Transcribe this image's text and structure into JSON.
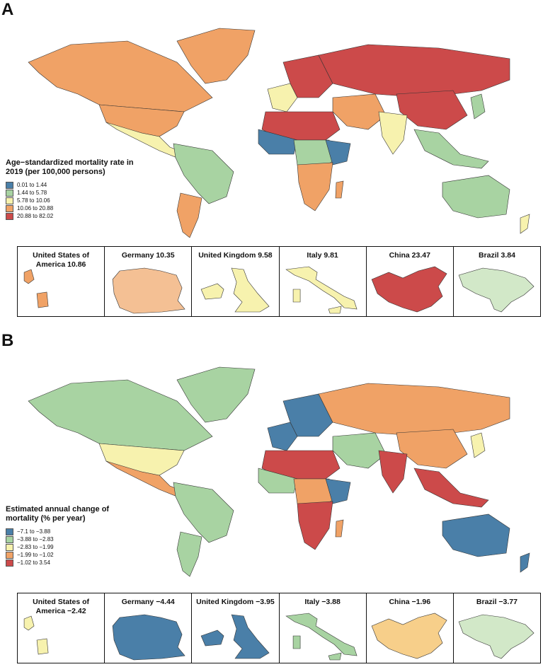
{
  "panelA": {
    "label": "A",
    "legend": {
      "title": "Age−standardized mortality rate in 2019 (per 100,000 persons)",
      "items": [
        {
          "label": "0.01 to 1.44",
          "color": "#4a7fa8"
        },
        {
          "label": "1.44 to 5.78",
          "color": "#a8d3a2"
        },
        {
          "label": "5.78 to 10.06",
          "color": "#f7f2ae"
        },
        {
          "label": "10.06 to 20.88",
          "color": "#f0a266"
        },
        {
          "label": "20.88 to 82.02",
          "color": "#cc4a4a"
        }
      ]
    },
    "regions": {
      "north_america": "#f0a266",
      "greenland": "#f0a266",
      "usa": "#f0a266",
      "central_america": "#f7f2ae",
      "south_america": "#a8d3a2",
      "argentina": "#f0a266",
      "europe": "#cc4a4a",
      "west_europe": "#f7f2ae",
      "russia": "#cc4a4a",
      "north_africa": "#cc4a4a",
      "west_africa": "#4a7fa8",
      "central_africa": "#a8d3a2",
      "east_africa": "#4a7fa8",
      "southern_africa": "#f0a266",
      "middle_east": "#f0a266",
      "india": "#f7f2ae",
      "china": "#cc4a4a",
      "southeast_asia": "#a8d3a2",
      "japan": "#a8d3a2",
      "australia": "#a8d3a2",
      "new_zealand": "#f7f2ae",
      "madagascar": "#f0a266"
    },
    "countries": [
      {
        "name": "United States of America 10.86",
        "color": "#f0a266"
      },
      {
        "name": "Germany 10.35",
        "color": "#f4c094"
      },
      {
        "name": "United Kingdom 9.58",
        "color": "#f7f2ae"
      },
      {
        "name": "Italy 9.81",
        "color": "#f7f2ae"
      },
      {
        "name": "China 23.47",
        "color": "#cc4a4a"
      },
      {
        "name": "Brazil 3.84",
        "color": "#d2e8c8"
      }
    ]
  },
  "panelB": {
    "label": "B",
    "legend": {
      "title": "Estimated annual change of mortality (% per year)",
      "items": [
        {
          "label": "−7.1 to −3.88",
          "color": "#4a7fa8"
        },
        {
          "label": "−3.88 to −2.83",
          "color": "#a8d3a2"
        },
        {
          "label": "−2.83 to −1.99",
          "color": "#f7f2ae"
        },
        {
          "label": "−1.99 to −1.02",
          "color": "#f0a266"
        },
        {
          "label": "−1.02 to 3.54",
          "color": "#cc4a4a"
        }
      ]
    },
    "regions": {
      "north_america": "#a8d3a2",
      "greenland": "#a8d3a2",
      "usa": "#f7f2ae",
      "central_america": "#f0a266",
      "south_america": "#a8d3a2",
      "argentina": "#a8d3a2",
      "europe": "#4a7fa8",
      "west_europe": "#4a7fa8",
      "russia": "#f0a266",
      "north_africa": "#cc4a4a",
      "west_africa": "#a8d3a2",
      "central_africa": "#f0a266",
      "east_africa": "#4a7fa8",
      "southern_africa": "#cc4a4a",
      "middle_east": "#a8d3a2",
      "india": "#cc4a4a",
      "china": "#f0a266",
      "southeast_asia": "#cc4a4a",
      "japan": "#f7f2ae",
      "australia": "#4a7fa8",
      "new_zealand": "#4a7fa8",
      "madagascar": "#f0a266"
    },
    "countries": [
      {
        "name": "United States of America −2.42",
        "color": "#f7f2ae"
      },
      {
        "name": "Germany −4.44",
        "color": "#4a7fa8"
      },
      {
        "name": "United Kingdom −3.95",
        "color": "#4a7fa8"
      },
      {
        "name": "Italy −3.88",
        "color": "#a8d3a2"
      },
      {
        "name": "China −1.96",
        "color": "#f7cf8a"
      },
      {
        "name": "Brazil −3.77",
        "color": "#d2e8c8"
      }
    ]
  }
}
